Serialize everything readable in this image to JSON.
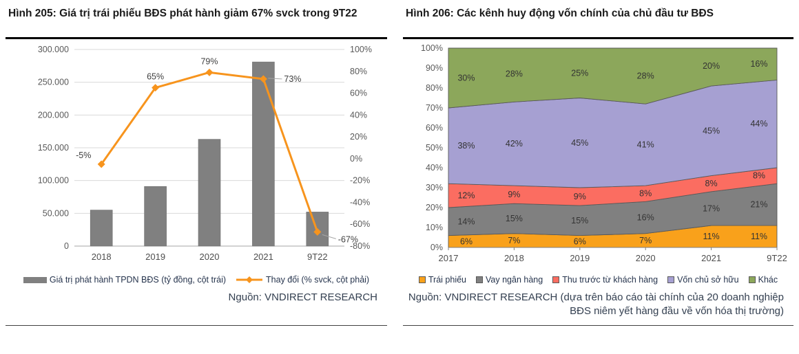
{
  "accent_colors": {
    "bar_gray": "#808080",
    "line_orange": "#F7941D",
    "grid": "#D9D9D9",
    "axis": "#A6A6A6",
    "source_navy": "#333F50"
  },
  "chart_data": [
    {
      "id": "figure-205",
      "type": "bar",
      "title": "Hình 205: Giá trị trái phiếu BĐS phát hành giảm 67% svck trong 9T22",
      "categories": [
        "2018",
        "2019",
        "2020",
        "2021",
        "9T22"
      ],
      "series": [
        {
          "name": "Giá trị phát hành TPDN BĐS (tỷ đồng, cột trái)",
          "type": "bar",
          "axis": "left",
          "color": "#808080",
          "values": [
            55000,
            91000,
            163000,
            281000,
            52000
          ]
        },
        {
          "name": "Thay đổi (% svck, cột phải)",
          "type": "line",
          "axis": "right",
          "color": "#F7941D",
          "values": [
            -5,
            65,
            79,
            73,
            -67
          ],
          "labels": [
            "-5%",
            "65%",
            "79%",
            "73%",
            "-67%"
          ]
        }
      ],
      "left_axis": {
        "ticks": [
          "300.000",
          "250.000",
          "200.000",
          "150.000",
          "100.000",
          "50.000",
          "0"
        ],
        "min": 0,
        "max": 300000
      },
      "right_axis": {
        "ticks": [
          "100%",
          "80%",
          "60%",
          "40%",
          "20%",
          "0%",
          "-20%",
          "-40%",
          "-60%",
          "-80%"
        ],
        "min": -80,
        "max": 100
      },
      "grid": true,
      "legend_position": "bottom",
      "source": "Nguồn: VNDIRECT RESEARCH"
    },
    {
      "id": "figure-206",
      "type": "area",
      "title": "Hình 206: Các kênh huy động vốn chính của chủ đầu tư BĐS",
      "categories": [
        "2017",
        "2018",
        "2019",
        "2020",
        "2021",
        "9T22"
      ],
      "series": [
        {
          "name": "Trái phiếu",
          "color": "#F9A11B",
          "values": [
            6,
            7,
            6,
            7,
            11,
            11
          ]
        },
        {
          "name": "Vay ngân hàng",
          "color": "#808080",
          "values": [
            14,
            15,
            15,
            16,
            17,
            21
          ]
        },
        {
          "name": "Thu trước từ khách hàng",
          "color": "#FB6D61",
          "values": [
            12,
            9,
            9,
            8,
            8,
            8
          ]
        },
        {
          "name": "Vốn chủ sở hữu",
          "color": "#A6A0D2",
          "values": [
            38,
            42,
            45,
            41,
            45,
            44
          ]
        },
        {
          "name": "Khác",
          "color": "#8CA75B",
          "values": [
            30,
            28,
            25,
            28,
            20,
            16
          ]
        }
      ],
      "y_axis": {
        "ticks": [
          "0%",
          "10%",
          "20%",
          "30%",
          "40%",
          "50%",
          "60%",
          "70%",
          "80%",
          "90%",
          "100%"
        ],
        "min": 0,
        "max": 100
      },
      "stacked_to_100": true,
      "legend_position": "bottom",
      "source": "Nguồn: VNDIRECT RESEARCH (dựa trên báo cáo tài chính của 20 doanh nghiệp BĐS niêm yết hàng đầu về vốn hóa thị trường)"
    }
  ]
}
